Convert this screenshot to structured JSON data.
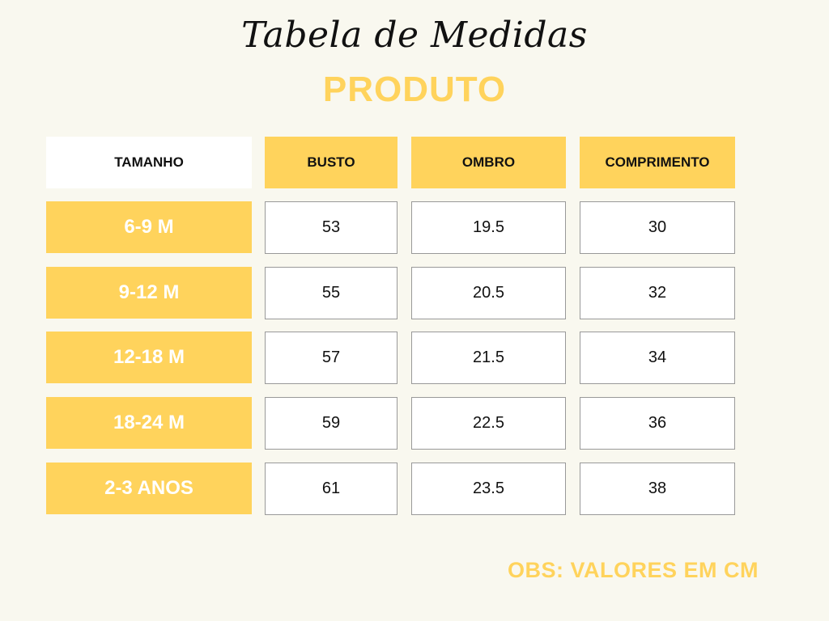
{
  "title": "Tabela de Medidas",
  "subtitle": "PRODUTO",
  "colors": {
    "accent": "#ffd35c",
    "background": "#f9f8ef"
  },
  "table": {
    "headers": [
      "TAMANHO",
      "BUSTO",
      "OMBRO",
      "COMPRIMENTO"
    ],
    "rows": [
      {
        "size": "6-9 M",
        "busto": "53",
        "ombro": "19.5",
        "comprimento": "30"
      },
      {
        "size": "9-12 M",
        "busto": "55",
        "ombro": "20.5",
        "comprimento": "32"
      },
      {
        "size": "12-18 M",
        "busto": "57",
        "ombro": "21.5",
        "comprimento": "34"
      },
      {
        "size": "18-24 M",
        "busto": "59",
        "ombro": "22.5",
        "comprimento": "36"
      },
      {
        "size": "2-3 ANOS",
        "busto": "61",
        "ombro": "23.5",
        "comprimento": "38"
      }
    ]
  },
  "note": "OBS: VALORES EM CM"
}
